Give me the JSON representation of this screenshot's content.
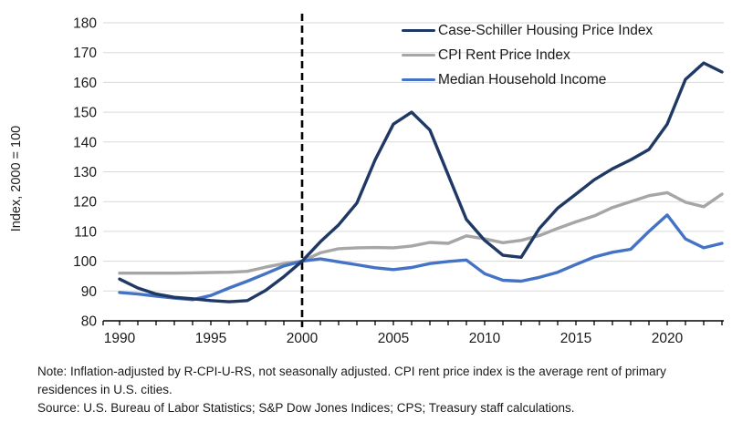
{
  "chart": {
    "y_axis_title": "Index, 2000 = 100",
    "notes": {
      "note": "Note: Inflation-adjusted by R-CPI-U-RS, not seasonally adjusted. CPI rent price index is the average rent of primary residences in U.S. cities.",
      "source": "Source: U.S. Bureau of Labor Statistics; S&P Dow Jones Indices; CPS; Treasury staff calculations."
    },
    "colors": {
      "axis": "#000000",
      "gridline": "#d9d9d9",
      "tick_text": "#1a1a1a",
      "reference_line": "#000000",
      "background": "#ffffff"
    }
  },
  "chart_data": {
    "type": "line",
    "title": "",
    "ylabel": "Index, 2000 = 100",
    "xlabel": "",
    "ylim": [
      80,
      180
    ],
    "xlim": [
      1990,
      2023.5
    ],
    "y_ticks": [
      80,
      90,
      100,
      110,
      120,
      130,
      140,
      150,
      160,
      170,
      180
    ],
    "x_ticks": [
      1990,
      1995,
      2000,
      2005,
      2010,
      2015,
      2020
    ],
    "grid": "horizontal",
    "legend_position": "top-right",
    "reference_line_x": 2000,
    "x": [
      1990,
      1991,
      1992,
      1993,
      1994,
      1995,
      1996,
      1997,
      1998,
      1999,
      2000,
      2001,
      2002,
      2003,
      2004,
      2005,
      2006,
      2007,
      2008,
      2009,
      2010,
      2011,
      2012,
      2013,
      2014,
      2015,
      2016,
      2017,
      2018,
      2019,
      2020,
      2021,
      2022,
      2023
    ],
    "series": [
      {
        "name": "Case-Schiller Housing Price Index",
        "color": "#1f3864",
        "values": [
          94,
          91,
          89,
          87.9,
          87.4,
          86.8,
          86.4,
          86.8,
          90.2,
          94.8,
          100,
          106.5,
          112.2,
          119.5,
          134,
          146,
          150,
          144,
          129,
          114,
          107,
          102,
          101.3,
          111,
          117.8,
          122.5,
          127.3,
          131,
          134,
          137.5,
          146,
          161,
          166.5,
          163.5
        ]
      },
      {
        "name": "CPI Rent Price Index",
        "color": "#a6a6a6",
        "values": [
          96,
          96,
          96,
          96,
          96.1,
          96.2,
          96.3,
          96.6,
          98,
          99.2,
          100,
          102.8,
          104.2,
          104.5,
          104.6,
          104.5,
          105.1,
          106.3,
          106,
          108.5,
          107.5,
          106.2,
          107,
          108.6,
          111,
          113.2,
          115.2,
          118,
          120,
          122,
          123,
          119.8,
          118.3,
          122.5
        ]
      },
      {
        "name": "Median Household Income",
        "color": "#4472c4",
        "values": [
          89.5,
          89,
          88.3,
          87.6,
          87.1,
          88.5,
          91,
          93.3,
          95.8,
          98.4,
          100,
          100.8,
          99.8,
          98.8,
          97.8,
          97.2,
          97.9,
          99.2,
          99.9,
          100.4,
          95.8,
          93.6,
          93.3,
          94.6,
          96.3,
          98.9,
          101.4,
          103,
          104,
          110,
          115.5,
          107.5,
          104.5,
          106
        ]
      }
    ]
  }
}
